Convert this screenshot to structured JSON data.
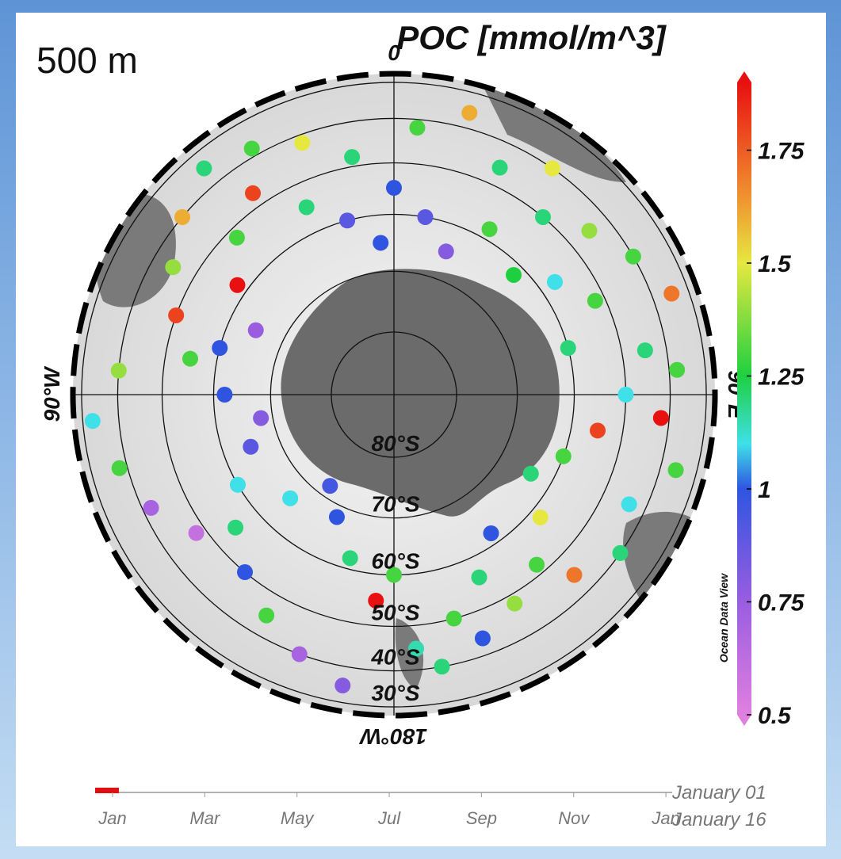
{
  "map": {
    "depth_label": "500 m",
    "title": "POC [mmol/m^3]",
    "watermark": "Ocean Data View",
    "lon_ticks": [
      {
        "value": 0,
        "label": "0"
      },
      {
        "value": 90,
        "label": "90°E"
      },
      {
        "value": 180,
        "label": "180°W"
      },
      {
        "value": -90,
        "label": "90°W"
      }
    ],
    "lat_ticks": [
      {
        "value": -80,
        "label": "80°S"
      },
      {
        "value": -70,
        "label": "70°S"
      },
      {
        "value": -60,
        "label": "60°S"
      },
      {
        "value": -50,
        "label": "50°S"
      },
      {
        "value": -40,
        "label": "40°S"
      },
      {
        "value": -30,
        "label": "30°S"
      }
    ],
    "colorbar": {
      "clim": [
        0.5,
        1.9
      ],
      "ticks": [
        1.75,
        1.5,
        1.25,
        1,
        0.75,
        0.5
      ],
      "colormap": [
        {
          "value": 0.5,
          "color": "#e07fe0"
        },
        {
          "value": 0.75,
          "color": "#9a5de0"
        },
        {
          "value": 1,
          "color": "#2f55e0"
        },
        {
          "value": 1.1,
          "color": "#3fe0e8"
        },
        {
          "value": 1.25,
          "color": "#1ed040"
        },
        {
          "value": 1.5,
          "color": "#e6e840"
        },
        {
          "value": 1.65,
          "color": "#f09030"
        },
        {
          "value": 1.9,
          "color": "#e81010"
        }
      ]
    },
    "points": {
      "lon": [
        -170,
        -160,
        -150,
        -140,
        -130,
        -120,
        -110,
        -100,
        -90,
        -80,
        -70,
        -60,
        -50,
        -40,
        -30,
        -20,
        -10,
        0,
        10,
        20,
        30,
        40,
        50,
        60,
        70,
        80,
        90,
        100,
        110,
        120,
        130,
        140,
        150,
        160,
        170,
        180,
        -175,
        -165,
        -155,
        -145,
        -135,
        -125,
        -115,
        -105,
        -95,
        -85,
        -75,
        -65,
        -55,
        -45,
        -35,
        -25,
        -15,
        -5,
        5,
        15,
        25,
        35,
        45,
        55,
        65,
        75,
        85,
        95,
        105,
        115,
        125,
        135,
        145,
        155,
        165,
        175
      ],
      "lat": [
        -35,
        -40,
        -45,
        -50,
        -55,
        -60,
        -65,
        -68,
        -62,
        -55,
        -50,
        -45,
        -40,
        -35,
        -38,
        -42,
        -48,
        -55,
        -60,
        -65,
        -58,
        -50,
        -45,
        -40,
        -35,
        -45,
        -50,
        -55,
        -60,
        -64,
        -58,
        -52,
        -48,
        -44,
        -40,
        -60,
        -55,
        -62,
        -68,
        -72,
        -66,
        -48,
        -42,
        -38,
        -33,
        -40,
        -60,
        -65,
        -58,
        -52,
        -47,
        -55,
        -60,
        -65,
        -42,
        -36,
        -46,
        -40,
        -62,
        -57,
        -52,
        -60,
        -38,
        -42,
        -36,
        -44,
        -40,
        -45,
        -62,
        -56,
        -50,
        -45
      ],
      "values": [
        0.8,
        0.7,
        1.3,
        1.0,
        1.2,
        1.1,
        0.9,
        0.8,
        1.0,
        1.3,
        1.8,
        1.4,
        1.6,
        1.2,
        1.3,
        1.5,
        1.2,
        1.0,
        0.9,
        0.8,
        1.3,
        1.2,
        1.4,
        1.3,
        1.7,
        1.2,
        1.1,
        1.8,
        1.3,
        1.2,
        1.5,
        1.3,
        1.4,
        1.0,
        1.2,
        1.3,
        1.9,
        1.2,
        1.0,
        0.95,
        1.1,
        0.6,
        0.7,
        1.3,
        1.1,
        1.4,
        1.0,
        0.75,
        1.9,
        1.3,
        1.8,
        1.2,
        0.9,
        1.0,
        1.3,
        1.6,
        1.2,
        1.5,
        1.25,
        1.1,
        1.3,
        1.2,
        1.3,
        1.9,
        1.3,
        1.1,
        1.2,
        1.7,
        1.0,
        1.2,
        1.3,
        1.15
      ]
    },
    "time_axis": {
      "months": [
        "Jan",
        "Mar",
        "May",
        "Jul",
        "Sep",
        "Nov",
        "Jan"
      ],
      "range_labels": [
        "January 01",
        "January 16"
      ]
    }
  }
}
